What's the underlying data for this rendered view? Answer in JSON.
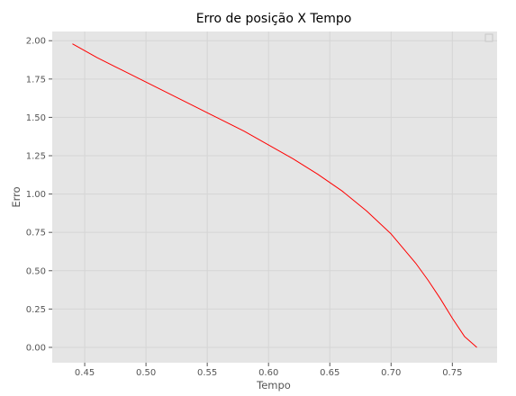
{
  "chart_data": {
    "type": "line",
    "title": "Erro de posição X Tempo",
    "xlabel": "Tempo",
    "ylabel": "Erro",
    "xlim": [
      0.4235,
      0.7865
    ],
    "ylim": [
      -0.1,
      2.06
    ],
    "xticks": [
      0.45,
      0.5,
      0.55,
      0.6,
      0.65,
      0.7,
      0.75
    ],
    "xtick_labels": [
      "0.45",
      "0.50",
      "0.55",
      "0.60",
      "0.65",
      "0.70",
      "0.75"
    ],
    "yticks": [
      0.0,
      0.25,
      0.5,
      0.75,
      1.0,
      1.25,
      1.5,
      1.75,
      2.0
    ],
    "ytick_labels": [
      "0.00",
      "0.25",
      "0.50",
      "0.75",
      "1.00",
      "1.25",
      "1.50",
      "1.75",
      "2.00"
    ],
    "grid": true,
    "legend": "upper right",
    "series": [
      {
        "color": "#ff0000",
        "x": [
          0.44,
          0.46,
          0.48,
          0.5,
          0.52,
          0.54,
          0.56,
          0.58,
          0.6,
          0.62,
          0.64,
          0.66,
          0.68,
          0.7,
          0.72,
          0.73,
          0.74,
          0.75,
          0.76,
          0.77
        ],
        "y": [
          1.98,
          1.89,
          1.81,
          1.73,
          1.65,
          1.57,
          1.49,
          1.41,
          1.32,
          1.23,
          1.13,
          1.02,
          0.89,
          0.74,
          0.55,
          0.44,
          0.32,
          0.19,
          0.07,
          0.0
        ]
      }
    ]
  },
  "colors": {
    "plot_background": "#e5e5e5",
    "grid": "#d5d5d5",
    "line": "#ff0000"
  }
}
